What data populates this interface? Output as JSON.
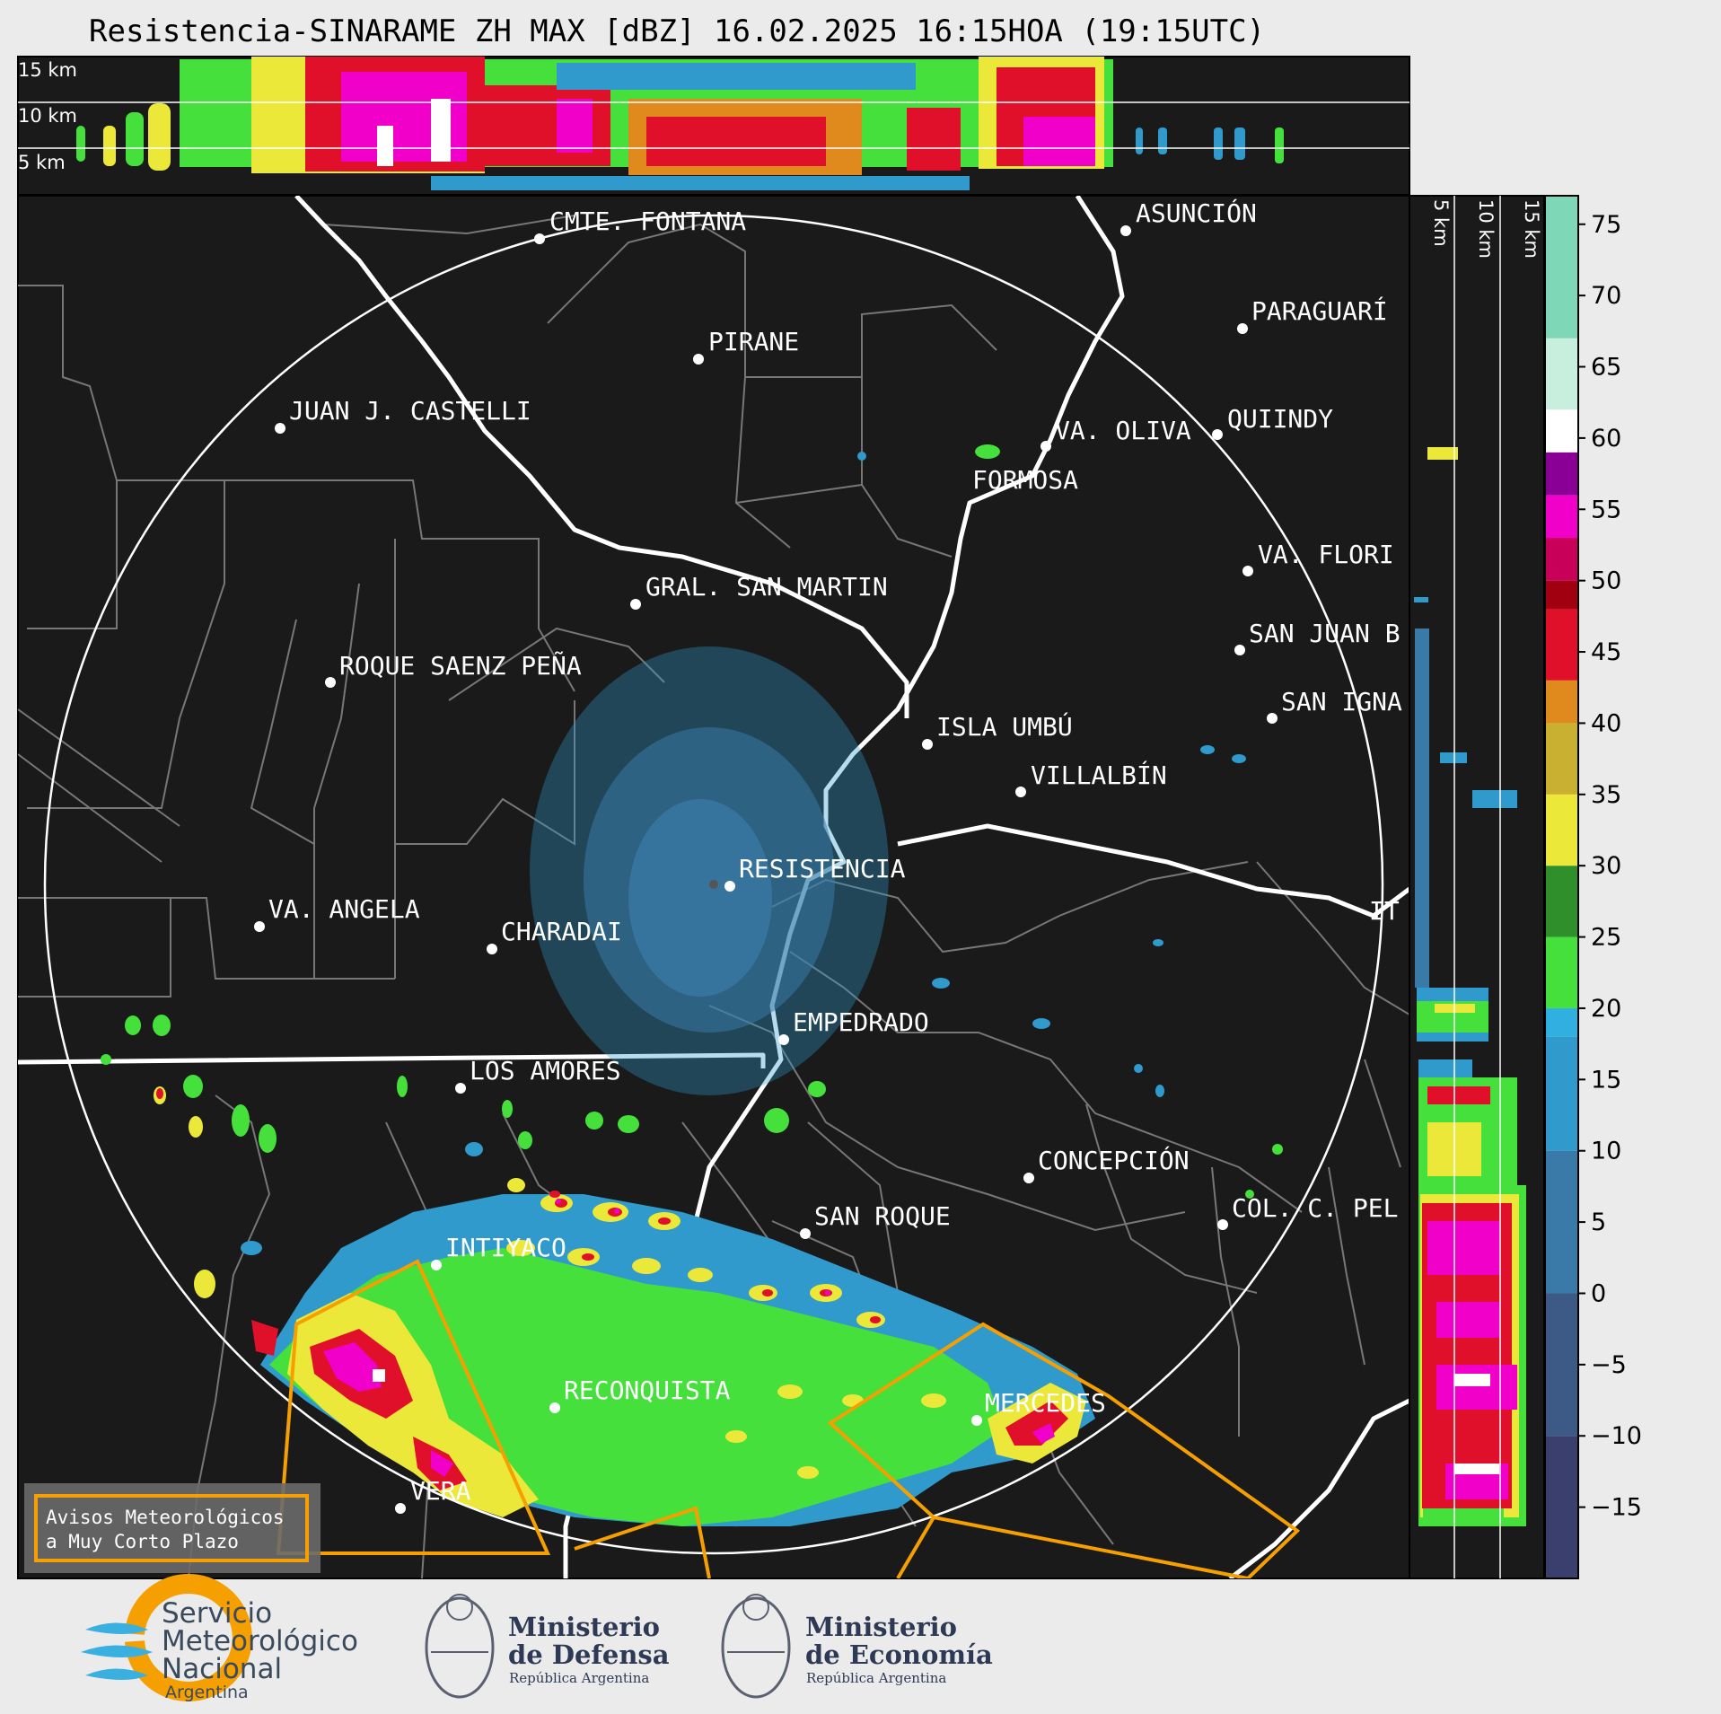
{
  "title": "Resistencia-SINARAME ZH MAX [dBZ] 16.02.2025 16:15HOA (19:15UTC)",
  "top_profile": {
    "km_labels": [
      "15 km",
      "10 km",
      "5 km"
    ]
  },
  "side_profile": {
    "km_labels": [
      "5 km",
      "10 km",
      "15 km"
    ]
  },
  "colorbar": {
    "ticks": [
      "75",
      "70",
      "65",
      "60",
      "55",
      "50",
      "45",
      "40",
      "35",
      "30",
      "25",
      "20",
      "15",
      "10",
      "5",
      "0",
      "−5",
      "−10",
      "−15"
    ],
    "bands": [
      {
        "from": -20,
        "to": -10,
        "color": "#3b3f6e"
      },
      {
        "from": -10,
        "to": 0,
        "color": "#3d5a86"
      },
      {
        "from": 0,
        "to": 10,
        "color": "#3a7aa8"
      },
      {
        "from": 10,
        "to": 18,
        "color": "#2f9acb"
      },
      {
        "from": 18,
        "to": 20,
        "color": "#2fb0e0"
      },
      {
        "from": 20,
        "to": 25,
        "color": "#45e03b"
      },
      {
        "from": 25,
        "to": 30,
        "color": "#2f8f2a"
      },
      {
        "from": 30,
        "to": 35,
        "color": "#ece83a"
      },
      {
        "from": 35,
        "to": 40,
        "color": "#c9b030"
      },
      {
        "from": 40,
        "to": 43,
        "color": "#e08a1e"
      },
      {
        "from": 43,
        "to": 48,
        "color": "#e0102a"
      },
      {
        "from": 48,
        "to": 50,
        "color": "#a00010"
      },
      {
        "from": 50,
        "to": 53,
        "color": "#c8005a"
      },
      {
        "from": 53,
        "to": 56,
        "color": "#f000c8"
      },
      {
        "from": 56,
        "to": 59,
        "color": "#8a0096"
      },
      {
        "from": 59,
        "to": 62,
        "color": "#ffffff"
      },
      {
        "from": 62,
        "to": 67,
        "color": "#c8eedd"
      },
      {
        "from": 67,
        "to": 77,
        "color": "#7ed8b8"
      }
    ],
    "range": [
      -20,
      77
    ]
  },
  "cities": [
    {
      "name": "CMTE. FONTANA"
    },
    {
      "name": "ASUNCIÓN"
    },
    {
      "name": "PARAGUARÍ"
    },
    {
      "name": "PIRANE"
    },
    {
      "name": "JUAN J. CASTELLI"
    },
    {
      "name": "VA. OLIVA"
    },
    {
      "name": "QUIINDY"
    },
    {
      "name": "FORMOSA"
    },
    {
      "name": "VA. FLORI"
    },
    {
      "name": "GRAL. SAN MARTIN"
    },
    {
      "name": "SAN JUAN B"
    },
    {
      "name": "ROQUE SAENZ PEÑA"
    },
    {
      "name": "SAN IGNA"
    },
    {
      "name": "ISLA UMBÚ"
    },
    {
      "name": "VILLALBÍN"
    },
    {
      "name": "RESISTENCIA"
    },
    {
      "name": "VA. ANGELA"
    },
    {
      "name": "CHARADAI"
    },
    {
      "name": "IT"
    },
    {
      "name": "EMPEDRADO"
    },
    {
      "name": "LOS AMORES"
    },
    {
      "name": "CONCEPCIÓN"
    },
    {
      "name": "SAN ROQUE"
    },
    {
      "name": "COL. C. PEL"
    },
    {
      "name": "INTIYACO"
    },
    {
      "name": "RECONQUISTA"
    },
    {
      "name": "MERCEDES"
    },
    {
      "name": "VERA"
    }
  ],
  "avisos": {
    "line1": "Avisos Meteorológicos",
    "line2": "a Muy Corto Plazo"
  },
  "logos": {
    "smn": {
      "line1": "Servicio",
      "line2": "Meteorológico",
      "line3": "Nacional",
      "line4": "Argentina"
    },
    "defensa": {
      "line1": "Ministerio",
      "line2": "de Defensa",
      "line3": "República Argentina"
    },
    "economia": {
      "line1": "Ministerio",
      "line2": "de Economía",
      "line3": "República Argentina"
    }
  },
  "colors": {
    "map_bg": "#1a1a1a",
    "warning": "#f5a000",
    "page_bg": "#ebebeb"
  }
}
